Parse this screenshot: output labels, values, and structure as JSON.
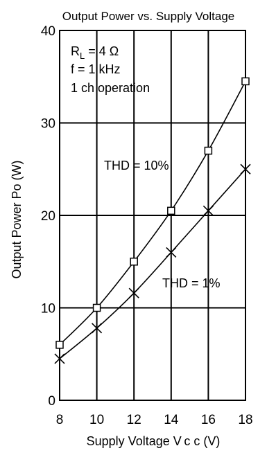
{
  "chart_data": {
    "type": "line",
    "title": "Output Power vs. Supply Voltage",
    "xlabel": "Supply Voltage  V c c  (V)",
    "ylabel": "Output Power  Po  (W)",
    "xlim": [
      8,
      18
    ],
    "ylim": [
      0,
      40
    ],
    "x_ticks": [
      "8",
      "10",
      "12",
      "14",
      "16",
      "18"
    ],
    "y_ticks": [
      "0",
      "10",
      "20",
      "30",
      "40"
    ],
    "grid": true,
    "conditions": {
      "rl_prefix": "R",
      "rl_sub": "L",
      "rl_value": " = 4 Ω",
      "freq": "f = 1 kHz",
      "mode": "1 ch operation"
    },
    "series": [
      {
        "label": "THD = 10%",
        "marker": "square",
        "x": [
          8,
          10,
          12,
          14,
          16,
          18
        ],
        "y": [
          6,
          10,
          15,
          20.5,
          27,
          34.5
        ]
      },
      {
        "label": "THD = 1%",
        "marker": "x",
        "x": [
          8,
          10,
          12,
          14,
          16,
          18
        ],
        "y": [
          4.5,
          7.8,
          11.6,
          16,
          20.5,
          25
        ]
      }
    ],
    "colors": {
      "line": "#000000",
      "grid": "#000000",
      "background": "#ffffff"
    }
  }
}
